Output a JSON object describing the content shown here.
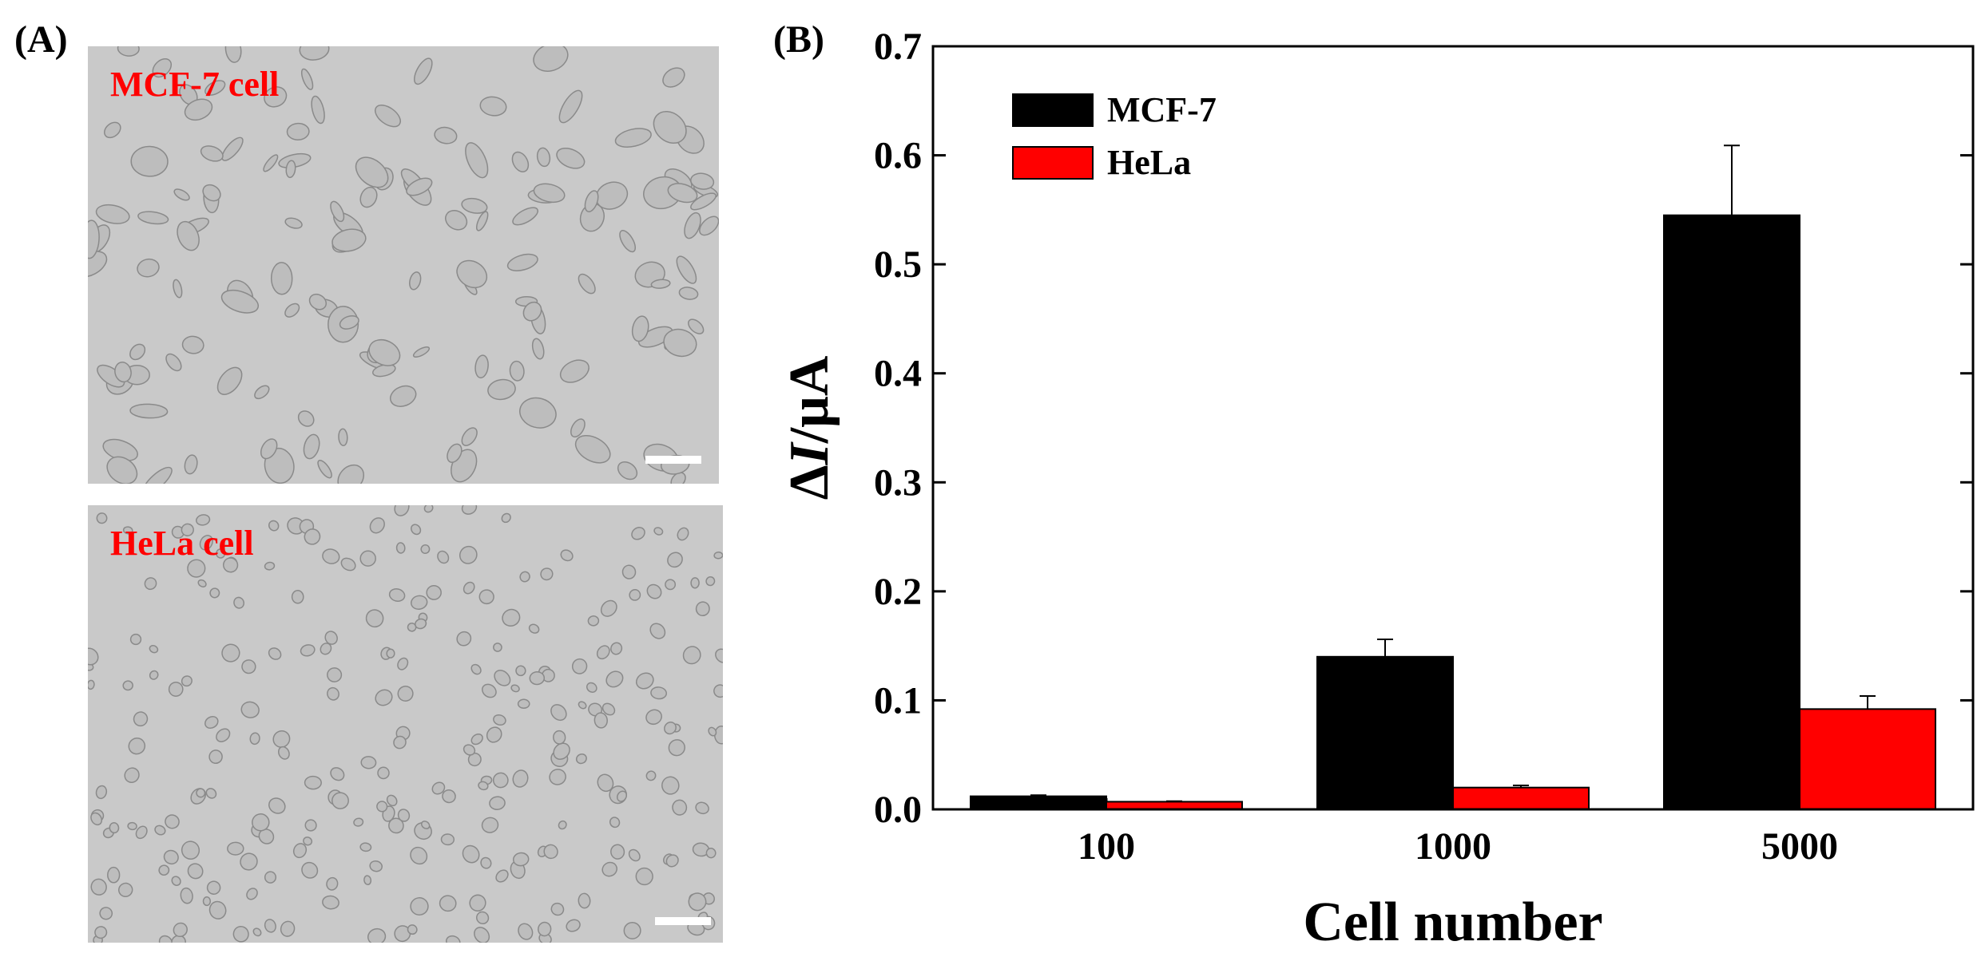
{
  "panel_a": {
    "label": "(A)",
    "images": [
      {
        "caption": "MCF-7 cell",
        "caption_color": "#ff0000"
      },
      {
        "caption": "HeLa cell",
        "caption_color": "#ff0000"
      }
    ]
  },
  "panel_b": {
    "label": "(B)"
  },
  "chart_data": {
    "type": "bar",
    "title": "",
    "xlabel": "Cell number",
    "ylabel_prefix": "Δ",
    "ylabel_var": "I",
    "ylabel_suffix": "/μA",
    "categories": [
      "100",
      "1000",
      "5000"
    ],
    "series": [
      {
        "name": "MCF-7",
        "color": "#000000",
        "values": [
          0.012,
          0.14,
          0.545
        ],
        "errors": [
          0.001,
          0.016,
          0.064
        ]
      },
      {
        "name": "HeLa",
        "color": "#ff0000",
        "values": [
          0.007,
          0.02,
          0.092
        ],
        "errors": [
          0.0005,
          0.002,
          0.012
        ]
      }
    ],
    "ylim": [
      0.0,
      0.7
    ],
    "yticks": [
      "0.0",
      "0.1",
      "0.2",
      "0.3",
      "0.4",
      "0.5",
      "0.6",
      "0.7"
    ],
    "legend_position": "top-left",
    "grid": false
  }
}
